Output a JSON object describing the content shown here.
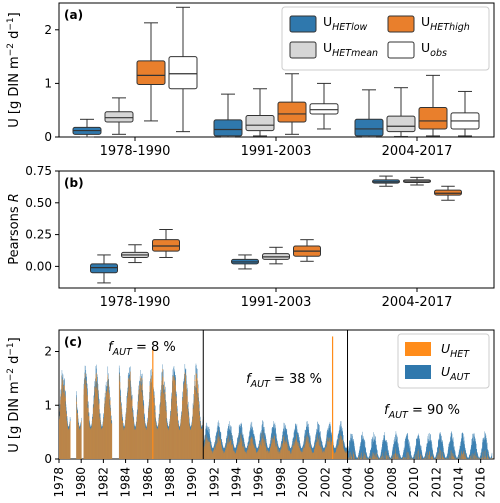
{
  "chart_data": [
    {
      "panel": "(a)",
      "type": "box",
      "ylabel": "U [g DIN m$^{-2}$ d$^{-1}$]",
      "ylim": [
        0,
        2.5
      ],
      "yticks": [
        0,
        1,
        2
      ],
      "categories": [
        "1978-1990",
        "1991-2003",
        "2004-2017"
      ],
      "series": [
        {
          "name": "U_HETlow",
          "label_main": "U",
          "label_sub": "HETlow",
          "color": "#2f78ad",
          "boxes": [
            {
              "whislo": 0.0,
              "q1": 0.05,
              "med": 0.12,
              "q3": 0.18,
              "whishi": 0.33
            },
            {
              "whislo": 0.0,
              "q1": 0.02,
              "med": 0.14,
              "q3": 0.32,
              "whishi": 0.8
            },
            {
              "whislo": 0.0,
              "q1": 0.02,
              "med": 0.15,
              "q3": 0.33,
              "whishi": 0.88
            }
          ]
        },
        {
          "name": "U_HETmean",
          "label_main": "U",
          "label_sub": "HETmean",
          "color": "#d6d6d6",
          "boxes": [
            {
              "whislo": 0.05,
              "q1": 0.28,
              "med": 0.36,
              "q3": 0.47,
              "whishi": 0.73
            },
            {
              "whislo": 0.02,
              "q1": 0.12,
              "med": 0.22,
              "q3": 0.4,
              "whishi": 0.9
            },
            {
              "whislo": 0.01,
              "q1": 0.1,
              "med": 0.2,
              "q3": 0.39,
              "whishi": 0.92
            }
          ]
        },
        {
          "name": "U_HEThigh",
          "label_main": "U",
          "label_sub": "HEThigh",
          "color": "#e97f2c",
          "boxes": [
            {
              "whislo": 0.3,
              "q1": 0.98,
              "med": 1.15,
              "q3": 1.42,
              "whishi": 2.13
            },
            {
              "whislo": 0.05,
              "q1": 0.28,
              "med": 0.43,
              "q3": 0.65,
              "whishi": 1.18
            },
            {
              "whislo": 0.02,
              "q1": 0.15,
              "med": 0.3,
              "q3": 0.55,
              "whishi": 1.15
            }
          ]
        },
        {
          "name": "U_obs",
          "label_main": "U",
          "label_sub": "obs",
          "color": "#ffffff",
          "boxes": [
            {
              "whislo": 0.1,
              "q1": 0.9,
              "med": 1.18,
              "q3": 1.5,
              "whishi": 2.42
            },
            {
              "whislo": 0.15,
              "q1": 0.43,
              "med": 0.51,
              "q3": 0.62,
              "whishi": 1.0
            },
            {
              "whislo": 0.02,
              "q1": 0.15,
              "med": 0.3,
              "q3": 0.45,
              "whishi": 0.85
            }
          ]
        }
      ]
    },
    {
      "panel": "(b)",
      "type": "box",
      "ylabel": "Pearsons R",
      "ylim": [
        -0.17,
        0.75
      ],
      "yticks": [
        0.0,
        0.25,
        0.5,
        0.75
      ],
      "ytick_labels": [
        "0.00",
        "0.25",
        "0.50",
        "0.75"
      ],
      "categories": [
        "1978-1990",
        "1991-2003",
        "2004-2017"
      ],
      "series": [
        {
          "name": "U_HETlow",
          "color": "#2f78ad",
          "boxes": [
            {
              "whislo": -0.13,
              "q1": -0.05,
              "med": -0.01,
              "q3": 0.02,
              "whishi": 0.09
            },
            {
              "whislo": -0.02,
              "q1": 0.02,
              "med": 0.035,
              "q3": 0.055,
              "whishi": 0.09
            },
            {
              "whislo": 0.63,
              "q1": 0.655,
              "med": 0.665,
              "q3": 0.68,
              "whishi": 0.71
            }
          ]
        },
        {
          "name": "U_HETmean",
          "color": "#d6d6d6",
          "boxes": [
            {
              "whislo": 0.03,
              "q1": 0.07,
              "med": 0.09,
              "q3": 0.11,
              "whishi": 0.17
            },
            {
              "whislo": 0.02,
              "q1": 0.055,
              "med": 0.075,
              "q3": 0.1,
              "whishi": 0.15
            },
            {
              "whislo": 0.64,
              "q1": 0.66,
              "med": 0.67,
              "q3": 0.68,
              "whishi": 0.7
            }
          ]
        },
        {
          "name": "U_HEThigh",
          "color": "#e97f2c",
          "boxes": [
            {
              "whislo": 0.07,
              "q1": 0.12,
              "med": 0.16,
              "q3": 0.21,
              "whishi": 0.29
            },
            {
              "whislo": 0.04,
              "q1": 0.08,
              "med": 0.12,
              "q3": 0.16,
              "whishi": 0.21
            },
            {
              "whislo": 0.52,
              "q1": 0.56,
              "med": 0.575,
              "q3": 0.6,
              "whishi": 0.63
            }
          ]
        }
      ]
    },
    {
      "panel": "(c)",
      "type": "bar",
      "ylabel": "U [g DIN m$^{-2}$ d$^{-1}$]",
      "ylim": [
        0,
        2.4
      ],
      "yticks": [
        0,
        1,
        2
      ],
      "xlim": [
        1978,
        2017.2
      ],
      "xticks": [
        1978,
        1980,
        1982,
        1984,
        1986,
        1988,
        1990,
        1992,
        1994,
        1996,
        1998,
        2000,
        2002,
        2004,
        2006,
        2008,
        2010,
        2012,
        2014,
        2016
      ],
      "dividers": [
        1991,
        2004
      ],
      "gaps": [
        [
          1979.0,
          1979.55
        ],
        [
          1980.0,
          1980.2
        ],
        [
          1982.75,
          1983.4
        ]
      ],
      "periods": [
        {
          "start": 1978,
          "end": 1991,
          "f_aut": 8,
          "peak": 1.55,
          "base": 0.6,
          "spike": {
            "x": 1986.4,
            "y": 2.05
          }
        },
        {
          "start": 1991,
          "end": 2004,
          "f_aut": 38,
          "peak": 0.62,
          "base": 0.2,
          "spike": {
            "x": 2002.6,
            "y": 2.28
          }
        },
        {
          "start": 2004,
          "end": 2017,
          "f_aut": 90,
          "peak": 0.42,
          "base": 0.02,
          "spike": null
        }
      ],
      "series": [
        {
          "name": "U_HET",
          "label_main": "U",
          "label_sub": "HET",
          "color": "#ff8c1a"
        },
        {
          "name": "U_AUT",
          "label_main": "U",
          "label_sub": "AUT",
          "color": "#2f78ad"
        }
      ],
      "annotation_prefix_main": "f",
      "annotation_prefix_sub": "AUT",
      "annotation_format": " = {v} %"
    }
  ]
}
